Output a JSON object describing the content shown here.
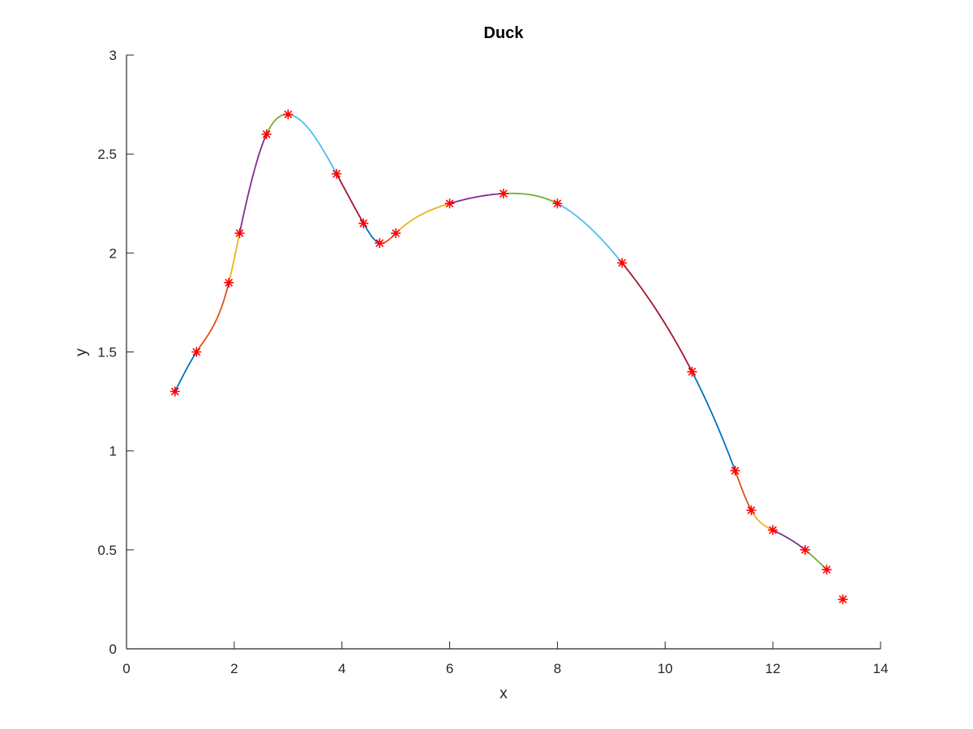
{
  "chart_data": {
    "type": "line",
    "title": "Duck",
    "xlabel": "x",
    "ylabel": "y",
    "xlim": [
      0,
      14
    ],
    "ylim": [
      0,
      3
    ],
    "xticks": [
      0,
      2,
      4,
      6,
      8,
      10,
      12,
      14
    ],
    "yticks": [
      0,
      0.5,
      1,
      1.5,
      2,
      2.5,
      3
    ],
    "xtick_labels": [
      "0",
      "2",
      "4",
      "6",
      "8",
      "10",
      "12",
      "14"
    ],
    "ytick_labels": [
      "0",
      "0.5",
      "1",
      "1.5",
      "2",
      "2.5",
      "3"
    ],
    "grid": false,
    "segment_colors": [
      "#0072BD",
      "#D95319",
      "#EDB120",
      "#7E2F8E",
      "#77AC30",
      "#4DBEEE",
      "#A2142F"
    ],
    "marker_color": "#FF0000",
    "marker_symbol": "*",
    "points": {
      "x": [
        0.9,
        1.3,
        1.9,
        2.1,
        2.6,
        3.0,
        3.9,
        4.4,
        4.7,
        5.0,
        6.0,
        7.0,
        8.0,
        9.2,
        10.5,
        11.3,
        11.6,
        12.0,
        12.6,
        13.0,
        13.3
      ],
      "y": [
        1.3,
        1.5,
        1.85,
        2.1,
        2.6,
        2.7,
        2.4,
        2.15,
        2.05,
        2.1,
        2.25,
        2.3,
        2.25,
        1.95,
        1.4,
        0.9,
        0.7,
        0.6,
        0.5,
        0.4,
        0.25
      ]
    },
    "spline_knots": {
      "x": [
        0.9,
        1.3,
        1.9,
        2.1,
        2.6,
        3.0,
        3.9,
        4.4,
        4.7,
        5.0,
        6.0,
        7.0,
        8.0,
        9.2,
        10.5,
        11.3,
        11.6,
        12.0,
        12.6,
        13.0
      ],
      "y": [
        1.3,
        1.5,
        1.85,
        2.1,
        2.6,
        2.7,
        2.4,
        2.15,
        2.05,
        2.1,
        2.25,
        2.3,
        2.25,
        1.95,
        1.4,
        0.9,
        0.7,
        0.6,
        0.5,
        0.4
      ]
    }
  }
}
